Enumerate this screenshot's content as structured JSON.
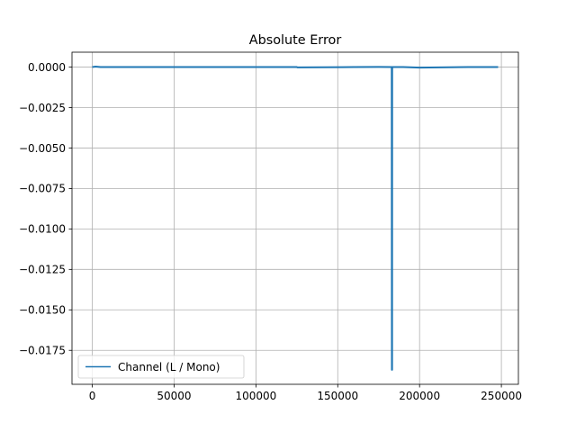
{
  "chart_data": {
    "type": "line",
    "title": "Absolute Error",
    "xlabel": "",
    "ylabel": "",
    "xlim": [
      -12400,
      260400
    ],
    "ylim": [
      -0.0196,
      0.00092
    ],
    "xticks": [
      0,
      50000,
      100000,
      150000,
      200000,
      250000
    ],
    "xtick_labels": [
      "0",
      "50000",
      "100000",
      "150000",
      "200000",
      "250000"
    ],
    "yticks": [
      0.0,
      -0.0025,
      -0.005,
      -0.0075,
      -0.01,
      -0.0125,
      -0.015,
      -0.0175
    ],
    "ytick_labels": [
      "0.0000",
      "−0.0025",
      "−0.0050",
      "−0.0075",
      "−0.0100",
      "−0.0125",
      "−0.0150",
      "−0.0175"
    ],
    "grid": true,
    "legend_position": "lower-left",
    "series": [
      {
        "name": "Channel (L / Mono)",
        "color": "#1f77b4",
        "x": [
          0,
          2000,
          5000,
          40000,
          80000,
          125000,
          125500,
          160000,
          175000,
          183000,
          183100,
          183150,
          183200,
          183250,
          183300,
          190000,
          200000,
          230000,
          248000
        ],
        "y": [
          0.0,
          3e-05,
          0.0,
          0.0,
          0.0,
          0.0,
          -2e-05,
          0.0,
          1e-05,
          0.0,
          -0.0187,
          0.0,
          -0.0187,
          -0.0002,
          0.0,
          0.0,
          -3e-05,
          0.0,
          0.0
        ]
      }
    ]
  }
}
